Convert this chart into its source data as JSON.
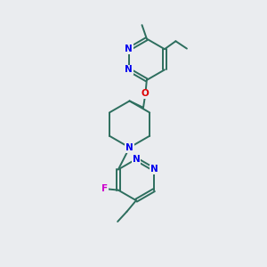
{
  "bg_color": "#eaecef",
  "bond_color": "#2d6e5e",
  "N_color": "#0000ee",
  "O_color": "#dd0000",
  "F_color": "#cc00cc",
  "line_width": 1.4,
  "font_size": 7.5,
  "fig_size": [
    3.0,
    3.0
  ],
  "dpi": 100,
  "xlim": [
    0,
    10
  ],
  "ylim": [
    0,
    10
  ]
}
